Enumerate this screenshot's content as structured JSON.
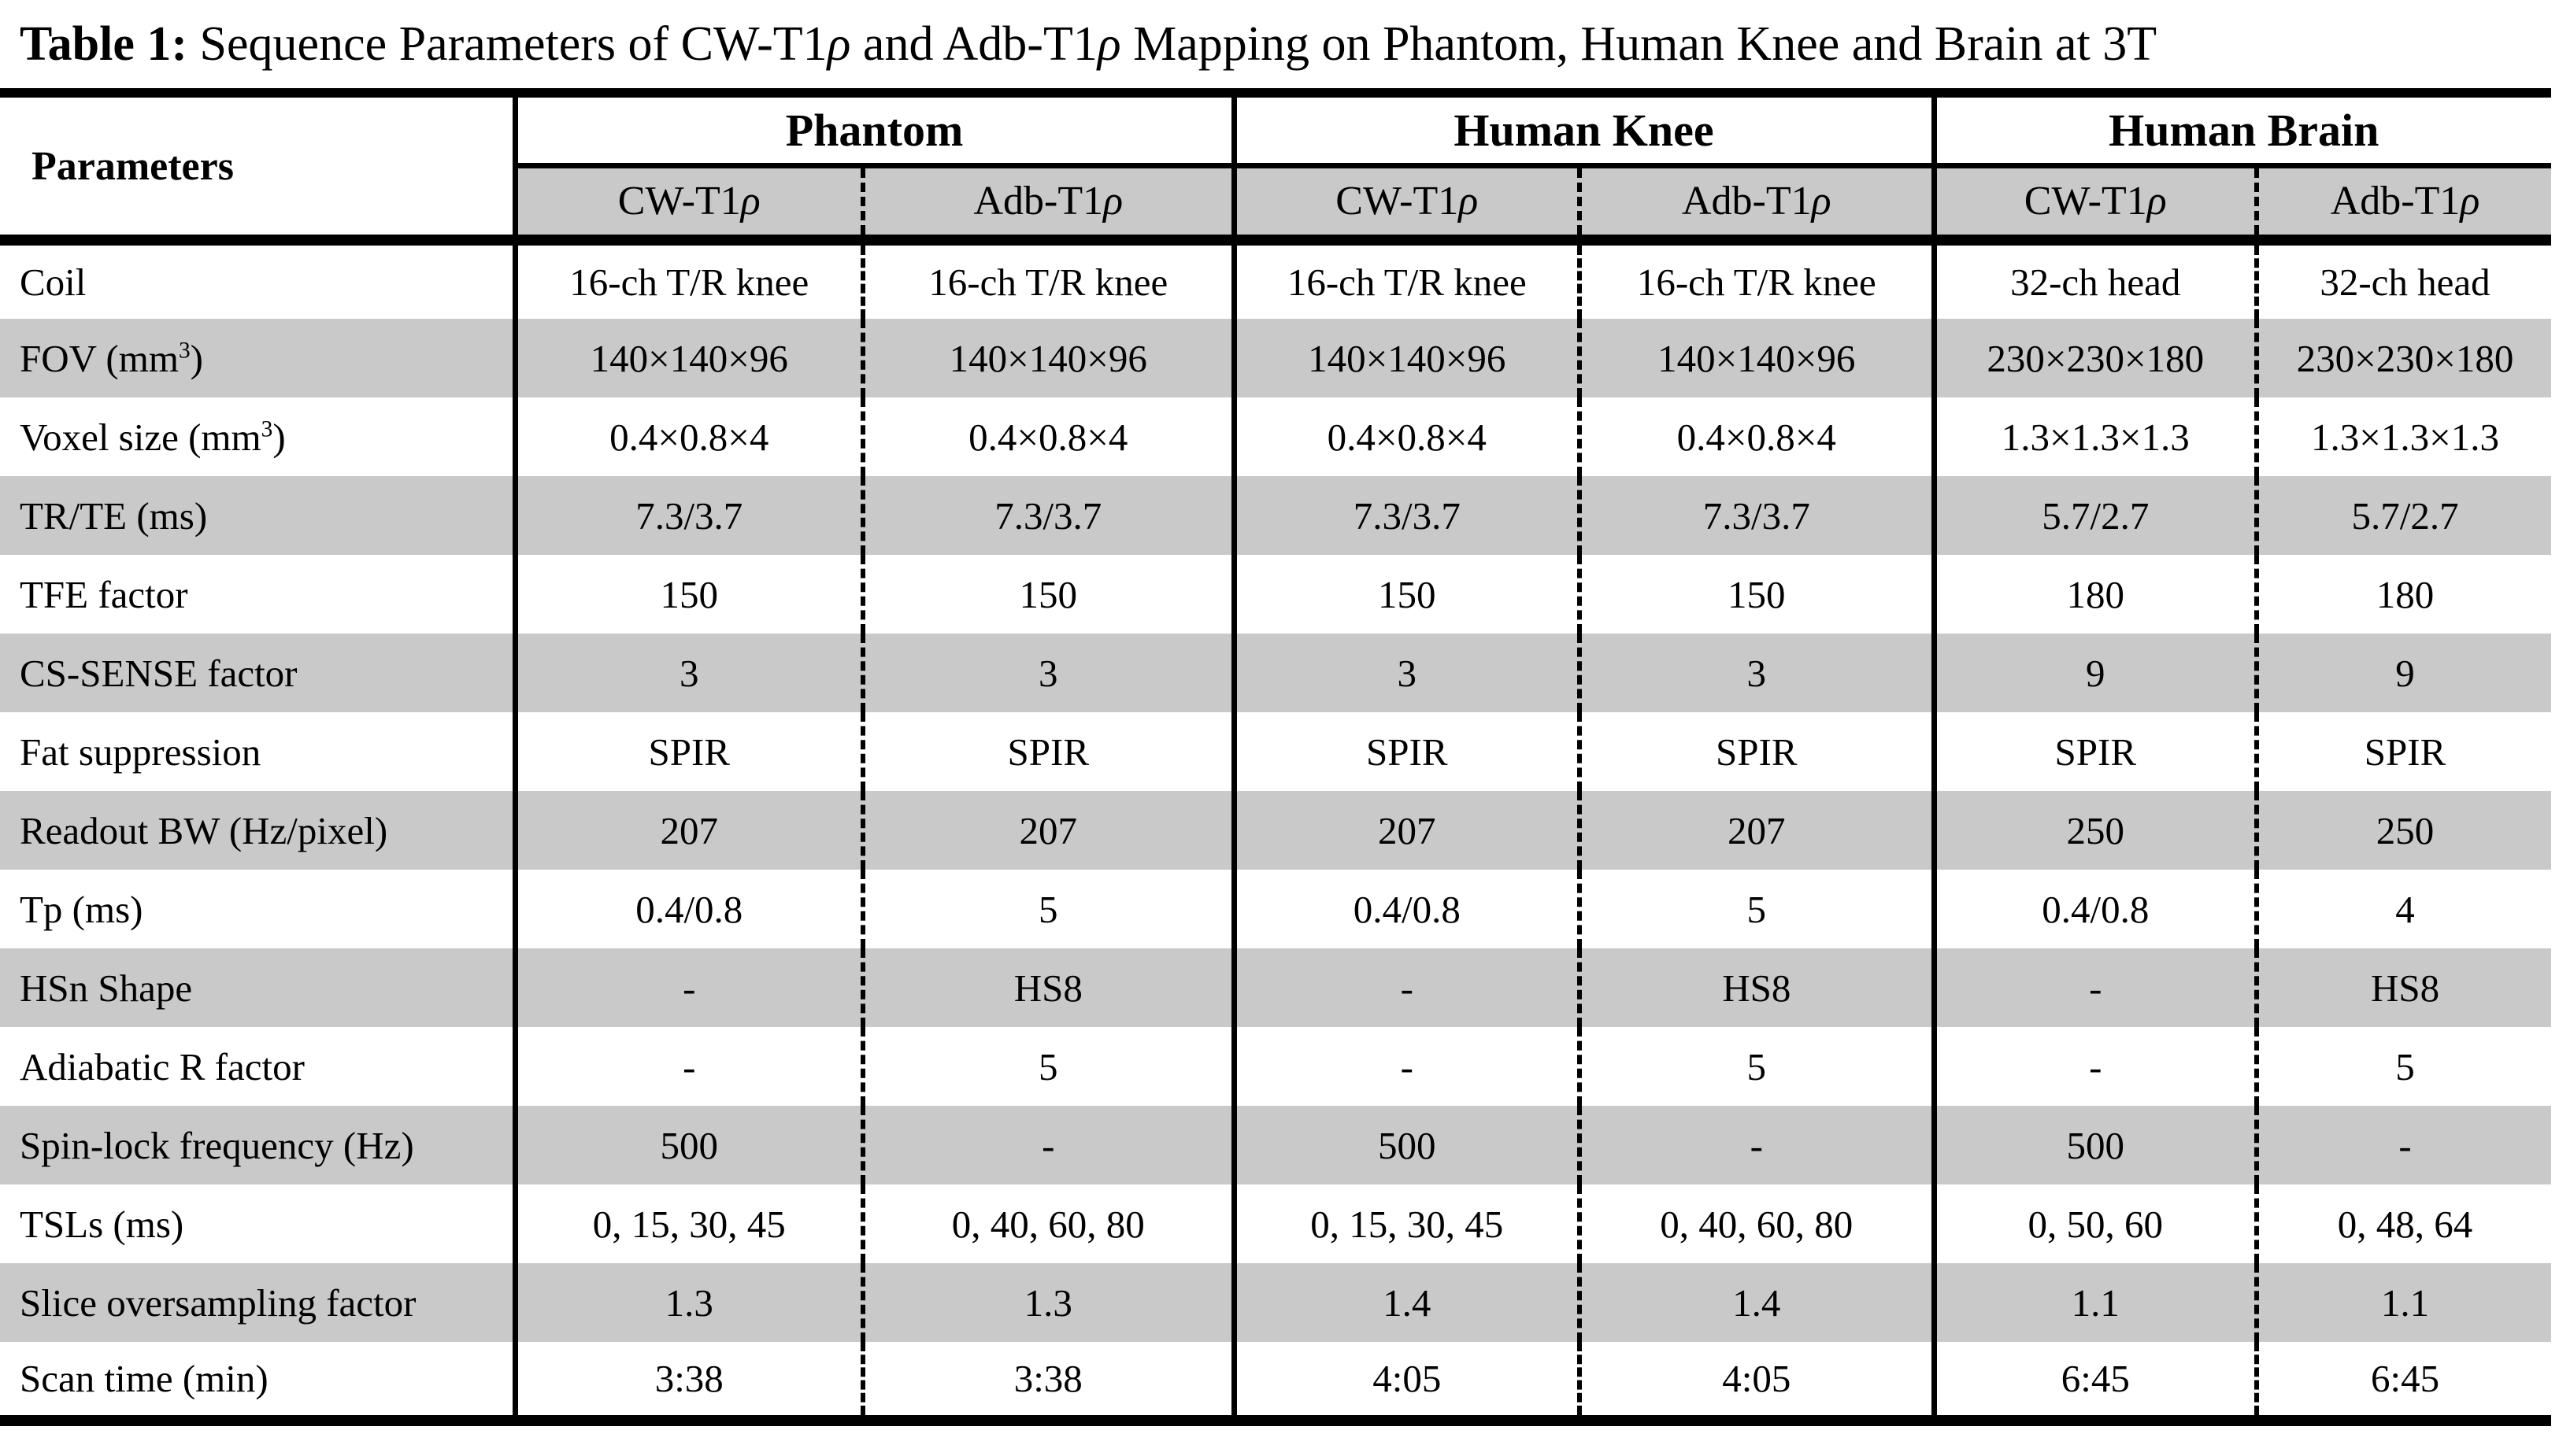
{
  "title": {
    "segments": [
      {
        "text": "Table 1:",
        "style": "bold"
      },
      {
        "text": " Sequence Parameters of CW-T1",
        "style": "normal"
      },
      {
        "text": "ρ",
        "style": "italic"
      },
      {
        "text": " and Adb-T1",
        "style": "normal"
      },
      {
        "text": "ρ",
        "style": "italic"
      },
      {
        "text": " Mapping on Phantom, Human Knee and Brain at 3T",
        "style": "normal"
      }
    ]
  },
  "table": {
    "corner_label": "Parameters",
    "groups": [
      {
        "label": "Phantom"
      },
      {
        "label": "Human Knee"
      },
      {
        "label": "Human Brain"
      }
    ],
    "subheaders": [
      {
        "base": "CW-T1",
        "rho": "ρ"
      },
      {
        "base": "Adb-T1",
        "rho": "ρ"
      },
      {
        "base": "CW-T1",
        "rho": "ρ"
      },
      {
        "base": "Adb-T1",
        "rho": "ρ"
      },
      {
        "base": "CW-T1",
        "rho": "ρ"
      },
      {
        "base": "Adb-T1",
        "rho": "ρ"
      }
    ],
    "rows": [
      {
        "label_pre": "Coil",
        "label_sup": "",
        "label_post": "",
        "values": [
          "16-ch T/R knee",
          "16-ch T/R knee",
          "16-ch T/R knee",
          "16-ch T/R knee",
          "32-ch head",
          "32-ch head"
        ]
      },
      {
        "label_pre": "FOV (mm",
        "label_sup": "3",
        "label_post": ")",
        "values": [
          "140×140×96",
          "140×140×96",
          "140×140×96",
          "140×140×96",
          "230×230×180",
          "230×230×180"
        ]
      },
      {
        "label_pre": "Voxel size (mm",
        "label_sup": "3",
        "label_post": ")",
        "values": [
          "0.4×0.8×4",
          "0.4×0.8×4",
          "0.4×0.8×4",
          "0.4×0.8×4",
          "1.3×1.3×1.3",
          "1.3×1.3×1.3"
        ]
      },
      {
        "label_pre": "TR/TE (ms)",
        "label_sup": "",
        "label_post": "",
        "values": [
          "7.3/3.7",
          "7.3/3.7",
          "7.3/3.7",
          "7.3/3.7",
          "5.7/2.7",
          "5.7/2.7"
        ]
      },
      {
        "label_pre": "TFE factor",
        "label_sup": "",
        "label_post": "",
        "values": [
          "150",
          "150",
          "150",
          "150",
          "180",
          "180"
        ]
      },
      {
        "label_pre": "CS-SENSE factor",
        "label_sup": "",
        "label_post": "",
        "values": [
          "3",
          "3",
          "3",
          "3",
          "9",
          "9"
        ]
      },
      {
        "label_pre": "Fat suppression",
        "label_sup": "",
        "label_post": "",
        "values": [
          "SPIR",
          "SPIR",
          "SPIR",
          "SPIR",
          "SPIR",
          "SPIR"
        ]
      },
      {
        "label_pre": "Readout BW (Hz/pixel)",
        "label_sup": "",
        "label_post": "",
        "values": [
          "207",
          "207",
          "207",
          "207",
          "250",
          "250"
        ]
      },
      {
        "label_pre": "Tp (ms)",
        "label_sup": "",
        "label_post": "",
        "values": [
          "0.4/0.8",
          "5",
          "0.4/0.8",
          "5",
          "0.4/0.8",
          "4"
        ]
      },
      {
        "label_pre": "HSn Shape",
        "label_sup": "",
        "label_post": "",
        "values": [
          "-",
          "HS8",
          "-",
          "HS8",
          "-",
          "HS8"
        ]
      },
      {
        "label_pre": "Adiabatic R factor",
        "label_sup": "",
        "label_post": "",
        "values": [
          "-",
          "5",
          "-",
          "5",
          "-",
          "5"
        ]
      },
      {
        "label_pre": "Spin-lock frequency (Hz)",
        "label_sup": "",
        "label_post": "",
        "values": [
          "500",
          "-",
          "500",
          "-",
          "500",
          "-"
        ]
      },
      {
        "label_pre": "TSLs (ms)",
        "label_sup": "",
        "label_post": "",
        "values": [
          "0, 15, 30, 45",
          "0, 40, 60, 80",
          "0, 15, 30, 45",
          "0, 40, 60, 80",
          "0, 50, 60",
          "0, 48, 64"
        ]
      },
      {
        "label_pre": "Slice oversampling factor",
        "label_sup": "",
        "label_post": "",
        "values": [
          "1.3",
          "1.3",
          "1.4",
          "1.4",
          "1.1",
          "1.1"
        ]
      },
      {
        "label_pre": "Scan time (min)",
        "label_sup": "",
        "label_post": "",
        "values": [
          "3:38",
          "3:38",
          "4:05",
          "4:05",
          "6:45",
          "6:45"
        ]
      }
    ]
  },
  "colors": {
    "band_gray": "#c9c9c9",
    "line_black": "#000000",
    "background": "#ffffff"
  }
}
